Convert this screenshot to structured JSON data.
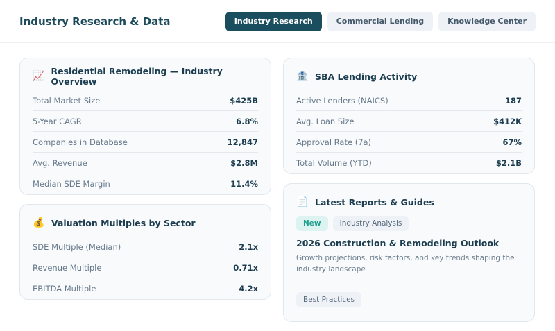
{
  "header": {
    "title": "Industry Research & Data",
    "nav": [
      {
        "label": "Industry Research",
        "active": true
      },
      {
        "label": "Commercial Lending"
      },
      {
        "label": "Knowledge Center"
      }
    ]
  },
  "overview": {
    "icon": "chart-increasing-icon",
    "title": "Residential Remodeling — Industry Overview",
    "rows": [
      {
        "label": "Total Market Size",
        "value": "$425B"
      },
      {
        "label": "5-Year CAGR",
        "value": "6.8%"
      },
      {
        "label": "Companies in Database",
        "value": "12,847"
      },
      {
        "label": "Avg. Revenue",
        "value": "$2.8M"
      },
      {
        "label": "Median SDE Margin",
        "value": "11.4%"
      }
    ]
  },
  "valuation": {
    "icon": "money-bag-icon",
    "title": "Valuation Multiples by Sector",
    "rows": [
      {
        "label": "SDE Multiple (Median)",
        "value": "2.1x"
      },
      {
        "label": "Revenue Multiple",
        "value": "0.71x"
      },
      {
        "label": "EBITDA Multiple",
        "value": "4.2x"
      }
    ]
  },
  "sba": {
    "icon": "bank-icon",
    "title": "SBA Lending Activity",
    "rows": [
      {
        "label": "Active Lenders (NAICS)",
        "value": "187"
      },
      {
        "label": "Avg. Loan Size",
        "value": "$412K"
      },
      {
        "label": "Approval Rate (7a)",
        "value": "67%"
      },
      {
        "label": "Total Volume (YTD)",
        "value": "$2.1B"
      }
    ]
  },
  "reports": {
    "icon": "document-icon",
    "title": "Latest Reports & Guides",
    "items": [
      {
        "tags": [
          "New",
          "Industry Analysis"
        ],
        "title": "2026 Construction & Remodeling Outlook",
        "desc": "Growth projections, risk factors, and key trends shaping the industry landscape"
      },
      {
        "tags": [
          "Best Practices"
        ]
      }
    ]
  }
}
